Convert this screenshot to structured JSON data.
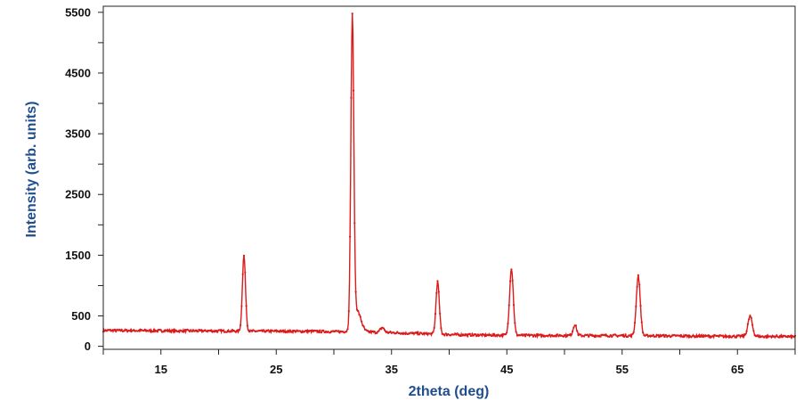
{
  "chart_data": {
    "type": "line",
    "title": "",
    "xlabel": "2theta (deg)",
    "ylabel": "Intensity (arb. units)",
    "xlim": [
      10,
      70
    ],
    "ylim": [
      -50,
      5600
    ],
    "x_ticks_labeled": [
      15,
      25,
      35,
      45,
      55,
      65
    ],
    "x_ticks_minor": [
      10,
      20,
      30,
      40,
      50,
      60,
      70
    ],
    "y_ticks_labeled": [
      0,
      500,
      1500,
      2500,
      3500,
      4500,
      5500
    ],
    "y_ticks_minor": [
      1000,
      2000,
      3000,
      4000,
      5000
    ],
    "grid": false,
    "legend": "none",
    "colors": {
      "series": "#dd1a1a",
      "axis_title": "#1f4e8c",
      "frame": "#222222"
    },
    "series": [
      {
        "baseline": [
          [
            10,
            260
          ],
          [
            16,
            255
          ],
          [
            22,
            250
          ],
          [
            28,
            245
          ],
          [
            31,
            240
          ],
          [
            34,
            230
          ],
          [
            38,
            205
          ],
          [
            42,
            185
          ],
          [
            46,
            180
          ],
          [
            50,
            178
          ],
          [
            56,
            175
          ],
          [
            60,
            170
          ],
          [
            64,
            165
          ],
          [
            70,
            160
          ]
        ],
        "peaks": [
          {
            "x": 22.2,
            "height": 1240,
            "fwhm": 0.32
          },
          {
            "x": 31.6,
            "height": 5070,
            "fwhm": 0.3
          },
          {
            "x": 32.0,
            "height": 350,
            "fwhm": 0.8
          },
          {
            "x": 34.2,
            "height": 80,
            "fwhm": 0.4
          },
          {
            "x": 39.0,
            "height": 860,
            "fwhm": 0.34
          },
          {
            "x": 45.4,
            "height": 1100,
            "fwhm": 0.38
          },
          {
            "x": 50.9,
            "height": 180,
            "fwhm": 0.35
          },
          {
            "x": 56.4,
            "height": 980,
            "fwhm": 0.4
          },
          {
            "x": 66.1,
            "height": 330,
            "fwhm": 0.45
          }
        ]
      }
    ]
  }
}
